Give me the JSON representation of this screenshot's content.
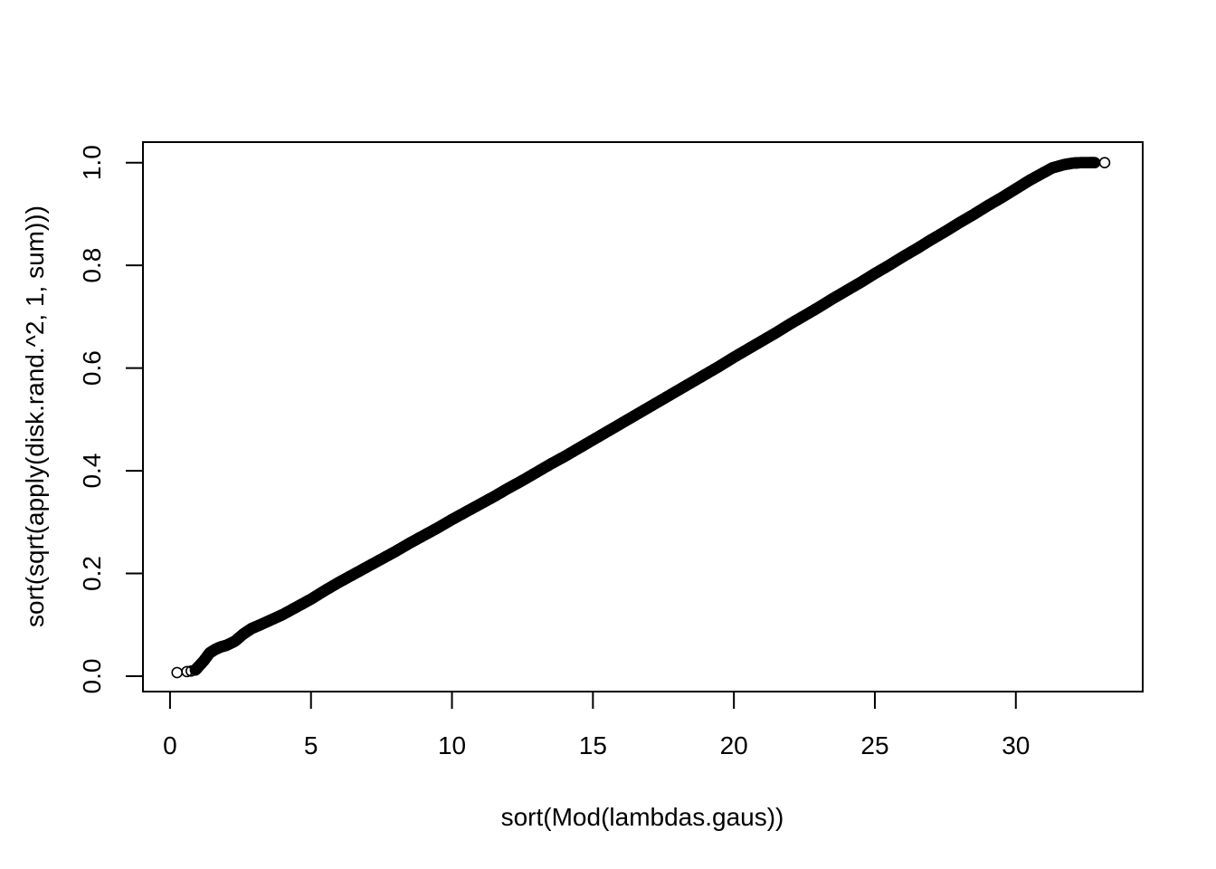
{
  "chart_data": {
    "type": "scatter",
    "title": "",
    "xlabel": "sort(Mod(lambdas.gaus))",
    "ylabel": "sort(sqrt(apply(disk.rand.^2, 1, sum)))",
    "xlim": [
      -0.96,
      34.5
    ],
    "ylim": [
      -0.03,
      1.04
    ],
    "x_ticks": [
      0,
      5,
      10,
      15,
      20,
      25,
      30
    ],
    "x_tick_labels": [
      "0",
      "5",
      "10",
      "15",
      "20",
      "25",
      "30"
    ],
    "y_ticks": [
      0.0,
      0.2,
      0.4,
      0.6,
      0.8,
      1.0
    ],
    "y_tick_labels": [
      "0.0",
      "0.2",
      "0.4",
      "0.6",
      "0.8",
      "1.0"
    ],
    "grid": false,
    "legend": "none",
    "marker": "open-circle",
    "color": "#000000",
    "series": [
      {
        "x": [
          0.25,
          0.6,
          0.75,
          0.9,
          1.0,
          1.2,
          1.4,
          1.6,
          1.8,
          2.0,
          2.3,
          2.6,
          2.9,
          3.2,
          3.6,
          4.0,
          4.5,
          5.0,
          5.5,
          6.0,
          6.5,
          7.0,
          7.5,
          8.0,
          8.5,
          9.0,
          9.5,
          10.0,
          10.5,
          11.0,
          11.5,
          12.0,
          12.5,
          13.0,
          13.5,
          14.0,
          14.5,
          15.0,
          15.5,
          16.0,
          16.5,
          17.0,
          17.5,
          18.0,
          18.5,
          19.0,
          19.5,
          20.0,
          20.5,
          21.0,
          21.5,
          22.0,
          22.5,
          23.0,
          23.5,
          24.0,
          24.5,
          25.0,
          25.5,
          26.0,
          26.5,
          27.0,
          27.5,
          28.0,
          28.5,
          29.0,
          29.5,
          30.0,
          30.5,
          30.9,
          31.3,
          31.7,
          32.0,
          32.3,
          32.6,
          32.8,
          33.15
        ],
        "y": [
          0.007,
          0.009,
          0.01,
          0.012,
          0.018,
          0.03,
          0.045,
          0.052,
          0.057,
          0.06,
          0.068,
          0.082,
          0.093,
          0.1,
          0.11,
          0.12,
          0.135,
          0.15,
          0.167,
          0.183,
          0.198,
          0.213,
          0.228,
          0.243,
          0.259,
          0.274,
          0.289,
          0.305,
          0.32,
          0.335,
          0.35,
          0.366,
          0.381,
          0.397,
          0.413,
          0.428,
          0.444,
          0.46,
          0.476,
          0.492,
          0.508,
          0.524,
          0.54,
          0.556,
          0.572,
          0.588,
          0.604,
          0.621,
          0.637,
          0.653,
          0.669,
          0.686,
          0.702,
          0.718,
          0.735,
          0.751,
          0.767,
          0.784,
          0.8,
          0.817,
          0.833,
          0.85,
          0.866,
          0.883,
          0.899,
          0.916,
          0.932,
          0.949,
          0.966,
          0.978,
          0.99,
          0.996,
          0.999,
          1.0,
          1.0,
          1.0,
          1.0
        ]
      }
    ]
  }
}
